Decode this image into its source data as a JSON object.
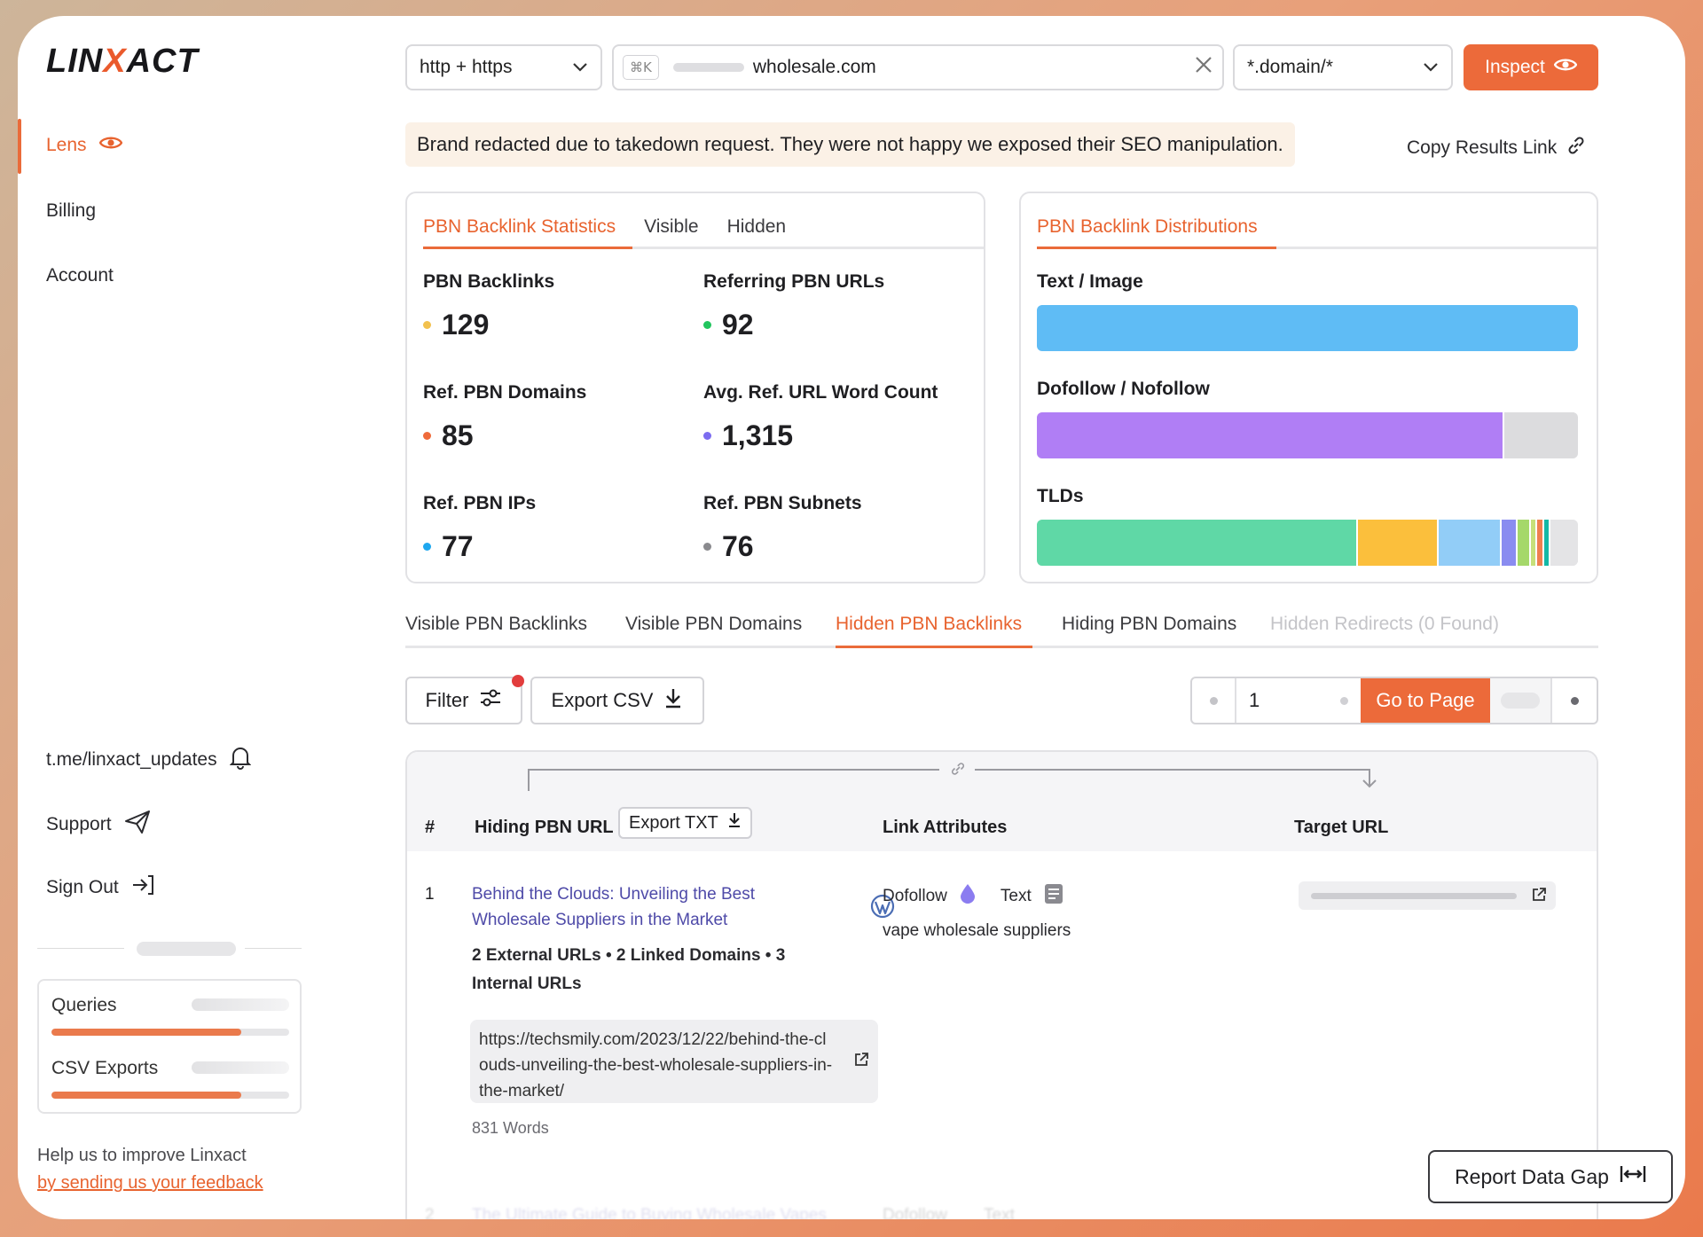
{
  "app": {
    "logo_left": "LIN",
    "logo_x": "X",
    "logo_right": "ACT",
    "accent": "#ea6b3a"
  },
  "sidebar": {
    "items": [
      {
        "label": "Lens",
        "icon": "eye-icon",
        "active": true
      },
      {
        "label": "Billing",
        "active": false
      },
      {
        "label": "Account",
        "active": false
      }
    ],
    "links": [
      {
        "label": "t.me/linxact_updates",
        "icon": "bell-icon"
      },
      {
        "label": "Support",
        "icon": "send-icon"
      },
      {
        "label": "Sign Out",
        "icon": "sign-out-icon"
      }
    ],
    "usage": [
      {
        "label": "Queries",
        "fraction": 0.8
      },
      {
        "label": "CSV Exports",
        "fraction": 0.8
      }
    ],
    "feedback_text": "Help us to improve Linxact",
    "feedback_link": "by sending us your feedback"
  },
  "topbar": {
    "protocol": "http + https",
    "kbd": "⌘K",
    "search_value": "wholesale.com",
    "scope": "*.domain/*",
    "inspect_label": "Inspect"
  },
  "notice": "Brand redacted due to takedown request. They were not happy we exposed their SEO manipulation.",
  "copy_link": "Copy Results Link",
  "stats_card": {
    "tabs": [
      "PBN Backlink Statistics",
      "Visible",
      "Hidden"
    ],
    "stats": [
      {
        "label": "PBN Backlinks",
        "value": "129",
        "color": "#f2c14e"
      },
      {
        "label": "Referring PBN URLs",
        "value": "92",
        "color": "#22c55e"
      },
      {
        "label": "Ref. PBN Domains",
        "value": "85",
        "color": "#ef6a3a"
      },
      {
        "label": "Avg. Ref. URL Word Count",
        "value": "1,315",
        "color": "#7c6cf0"
      },
      {
        "label": "Ref. PBN IPs",
        "value": "77",
        "color": "#1ea7ef"
      },
      {
        "label": "Ref. PBN Subnets",
        "value": "76",
        "color": "#8a8a8e"
      }
    ]
  },
  "dist_card": {
    "tab": "PBN Backlink Distributions",
    "bars": [
      {
        "label": "Text / Image",
        "segments": [
          {
            "fraction": 1.0,
            "color": "#5fbcf5"
          }
        ]
      },
      {
        "label": "Dofollow / Nofollow",
        "segments": [
          {
            "fraction": 0.86,
            "color": "#b07ef5"
          },
          {
            "fraction": 0.14,
            "color": "#dcdcde"
          }
        ]
      },
      {
        "label": "TLDs",
        "segments": [
          {
            "fraction": 0.59,
            "color": "#5fd8a6"
          },
          {
            "fraction": 0.15,
            "color": "#fbbf3c"
          },
          {
            "fraction": 0.115,
            "color": "#92cdf7"
          },
          {
            "fraction": 0.03,
            "color": "#8a8cf0"
          },
          {
            "fraction": 0.025,
            "color": "#a5d86a"
          },
          {
            "fraction": 0.012,
            "color": "#c7e07a"
          },
          {
            "fraction": 0.012,
            "color": "#ef7f4f"
          },
          {
            "fraction": 0.012,
            "color": "#14b8a6"
          },
          {
            "fraction": 0.054,
            "color": "#e4e4e6"
          }
        ]
      }
    ]
  },
  "main_tabs": [
    {
      "label": "Visible PBN Backlinks",
      "state": "normal"
    },
    {
      "label": "Visible PBN Domains",
      "state": "normal"
    },
    {
      "label": "Hidden PBN Backlinks",
      "state": "active"
    },
    {
      "label": "Hiding PBN Domains",
      "state": "normal"
    },
    {
      "label": "Hidden Redirects (0 Found)",
      "state": "disabled"
    }
  ],
  "toolbar": {
    "filter_label": "Filter",
    "export_csv_label": "Export CSV"
  },
  "pager": {
    "page_value": "1",
    "go_label": "Go to Page"
  },
  "table": {
    "headers": {
      "num": "#",
      "hiding_url": "Hiding PBN URL",
      "export_txt": "Export TXT",
      "attributes": "Link Attributes",
      "target": "Target URL"
    },
    "rows": [
      {
        "num": "1",
        "title": "Behind the Clouds: Unveiling the Best Wholesale Suppliers in the Market",
        "meta": "2 External URLs • 2 Linked Domains • 3 Internal URLs",
        "url": "https://techsmily.com/2023/12/22/behind-the-clouds-unveiling-the-best-wholesale-suppliers-in-the-market/",
        "words": "831 Words",
        "follow": "Dofollow",
        "type": "Text",
        "anchor": "vape wholesale suppliers"
      },
      {
        "num": "2",
        "title": "The Ultimate Guide to Buying Wholesale Vapes",
        "follow": "Dofollow",
        "type": "Text"
      }
    ]
  },
  "report_label": "Report Data Gap"
}
